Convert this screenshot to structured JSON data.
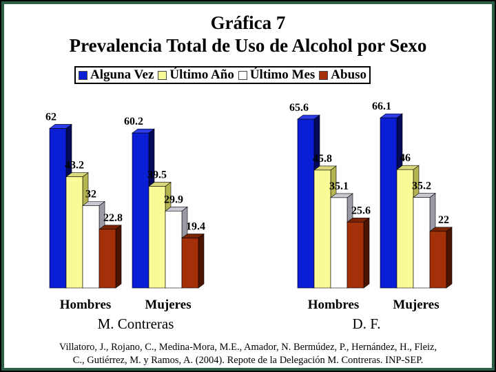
{
  "title_line1": "Gráfica 7",
  "title_line2": "Prevalencia Total de Uso de Alcohol por Sexo",
  "legend": [
    {
      "label": "Alguna Vez",
      "color": "#0a1ed6"
    },
    {
      "label": "Último Año",
      "color": "#fafa96"
    },
    {
      "label": "Último Mes",
      "color": "#ffffff"
    },
    {
      "label": "Abuso",
      "color": "#a33008"
    }
  ],
  "chart_data": [
    {
      "type": "bar",
      "panel_label": "M. Contreras",
      "categories": [
        "Hombres",
        "Mujeres"
      ],
      "series": [
        {
          "name": "Alguna Vez",
          "values": [
            62,
            60.2
          ]
        },
        {
          "name": "Último Año",
          "values": [
            43.2,
            39.5
          ]
        },
        {
          "name": "Último Mes",
          "values": [
            32,
            29.9
          ]
        },
        {
          "name": "Abuso",
          "values": [
            22.8,
            19.4
          ]
        }
      ],
      "ylim": [
        0,
        70
      ]
    },
    {
      "type": "bar",
      "panel_label": "D. F.",
      "categories": [
        "Hombres",
        "Mujeres"
      ],
      "series": [
        {
          "name": "Alguna Vez",
          "values": [
            65.6,
            66.1
          ]
        },
        {
          "name": "Último Año",
          "values": [
            45.8,
            46
          ]
        },
        {
          "name": "Último Mes",
          "values": [
            35.1,
            35.2
          ]
        },
        {
          "name": "Abuso",
          "values": [
            25.6,
            22
          ]
        }
      ],
      "ylim": [
        0,
        70
      ]
    }
  ],
  "citation_line1": "Villatoro, J., Rojano, C., Medina-Mora, M.E., Amador, N. Bermúdez, P., Hernández, H., Fleiz,",
  "citation_line2": "C., Gutiérrez, M. y Ramos, A. (2004). Repote de la Delegación M. Contreras. INP-SEP."
}
